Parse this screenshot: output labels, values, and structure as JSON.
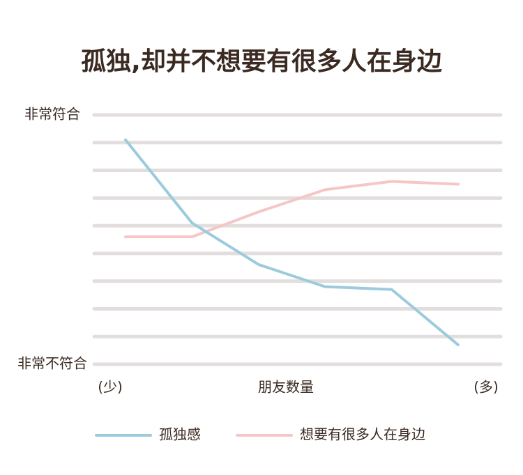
{
  "chart_data": {
    "type": "line",
    "title": "孤独,却并不想要有很多人在身边",
    "x_label": "朋友数量",
    "annotations": [
      "(少)",
      "(多)"
    ],
    "categories": [
      null,
      null,
      null,
      null,
      null,
      null
    ],
    "series": [
      {
        "name": "孤独感",
        "color": "#9ccbdc",
        "values": [
          8.1,
          5.1,
          3.6,
          2.8,
          2.7,
          0.7
        ]
      },
      {
        "name": "想要有很多人在身边",
        "color": "#f6c6c6",
        "values": [
          4.6,
          4.6,
          5.5,
          6.3,
          6.6,
          6.5
        ]
      }
    ],
    "ylim": [
      0,
      9
    ],
    "yticks": [
      {
        "value": 0,
        "label": "非常不符合"
      },
      {
        "value": 1,
        "label": null
      },
      {
        "value": 2,
        "label": null
      },
      {
        "value": 3,
        "label": null
      },
      {
        "value": 4,
        "label": null
      },
      {
        "value": 5,
        "label": null
      },
      {
        "value": 6,
        "label": null
      },
      {
        "value": 7,
        "label": null
      },
      {
        "value": 8,
        "label": null
      },
      {
        "value": 9,
        "label": "非常符合"
      }
    ],
    "grid": true,
    "legend": "bottom"
  }
}
